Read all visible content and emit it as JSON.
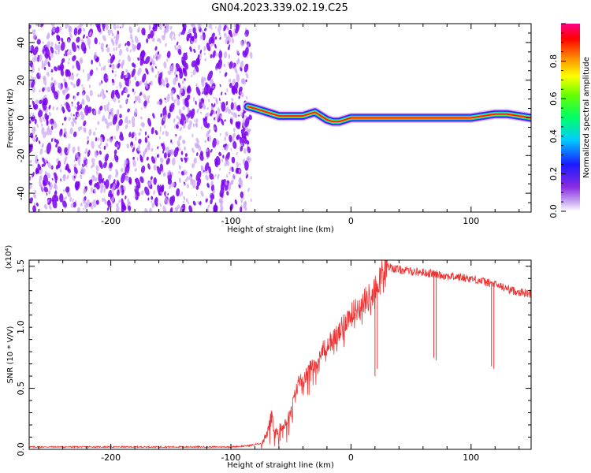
{
  "title": "GN04.2023.339.02.19.C25",
  "colors": {
    "snr_line": "#ee3333",
    "scatter_dark": "#7a00ee",
    "scatter_light": "#c9a3f5"
  },
  "chart_data": [
    {
      "type": "heatmap",
      "name": "spectrogram",
      "xlabel": "Height of straight line (km)",
      "ylabel": "Frequency (Hz)",
      "xlim": [
        -268,
        150
      ],
      "ylim": [
        -50,
        50
      ],
      "xticks": [
        -200,
        -100,
        0,
        100
      ],
      "xtick_labels": [
        "-200",
        "-100",
        "0",
        "100"
      ],
      "yticks": [
        -40,
        -20,
        0,
        20,
        40
      ],
      "ytick_labels": [
        "-40",
        "-20",
        "0",
        "20",
        "40"
      ],
      "noise_region": {
        "x_from": -268,
        "x_to": -83,
        "y_from": -50,
        "y_to": 50
      },
      "ridge": {
        "x": [
          -86,
          -80,
          -75,
          -70,
          -65,
          -60,
          -55,
          -50,
          -45,
          -40,
          -35,
          -30,
          -25,
          -20,
          -15,
          -10,
          -5,
          0,
          10,
          20,
          40,
          60,
          80,
          100,
          110,
          120,
          130,
          140,
          150
        ],
        "y": [
          6,
          5,
          4,
          3,
          2,
          1,
          1,
          1,
          1,
          1,
          2,
          3,
          1,
          -1,
          -2,
          -2,
          -1,
          0,
          0,
          0,
          0,
          0,
          0,
          0,
          1,
          2,
          2,
          1,
          0
        ]
      },
      "grid": false,
      "colorbar": {
        "label": "Normalized spectral amplitude",
        "range": [
          0,
          1
        ],
        "ticks": [
          0.0,
          0.2,
          0.4,
          0.6,
          0.8
        ],
        "tick_labels": [
          "0.0",
          "0.2",
          "0.4",
          "0.6",
          "0.8"
        ],
        "colormap": "rainbow (white-violet-blue-cyan-green-yellow-red-magenta)"
      }
    },
    {
      "type": "line",
      "name": "snr",
      "xlabel": "Height of straight line (km)",
      "ylabel": "SNR (10 * V/V)",
      "yscale_label": "(x10⁴)",
      "xlim": [
        -268,
        150
      ],
      "ylim": [
        0,
        1.55
      ],
      "xticks": [
        -200,
        -100,
        0,
        100
      ],
      "xtick_labels": [
        "-200",
        "-100",
        "0",
        "100"
      ],
      "yticks": [
        0.0,
        0.5,
        1.0,
        1.5
      ],
      "ytick_labels": [
        "0.0",
        "0.5",
        "1.0",
        "1.5"
      ],
      "grid": false,
      "series": [
        {
          "x": [
            -268,
            -240,
            -200,
            -160,
            -120,
            -100,
            -85,
            -75,
            -70,
            -68,
            -66,
            -64,
            -62,
            -58,
            -55,
            -52,
            -50,
            -48,
            -45,
            -42,
            -40,
            -35,
            -30,
            -25,
            -20,
            -15,
            -10,
            -5,
            0,
            5,
            10,
            15,
            20,
            23,
            25,
            28,
            30,
            40,
            60,
            80,
            100,
            120,
            135,
            150
          ],
          "y": [
            0.02,
            0.02,
            0.02,
            0.02,
            0.02,
            0.02,
            0.03,
            0.05,
            0.12,
            0.2,
            0.32,
            0.12,
            0.14,
            0.18,
            0.22,
            0.27,
            0.3,
            0.4,
            0.5,
            0.6,
            0.55,
            0.65,
            0.7,
            0.8,
            0.85,
            0.9,
            0.95,
            1.05,
            1.1,
            1.15,
            1.2,
            1.25,
            1.3,
            1.38,
            1.45,
            1.48,
            1.5,
            1.47,
            1.45,
            1.42,
            1.4,
            1.35,
            1.3,
            1.27
          ]
        }
      ],
      "spikes": [
        {
          "x": 20,
          "y": 0.6
        },
        {
          "x": 22,
          "y": 0.66
        },
        {
          "x": 69,
          "y": 0.75
        },
        {
          "x": 71,
          "y": 0.73
        },
        {
          "x": 117,
          "y": 0.68
        },
        {
          "x": 119,
          "y": 0.66
        }
      ]
    }
  ]
}
